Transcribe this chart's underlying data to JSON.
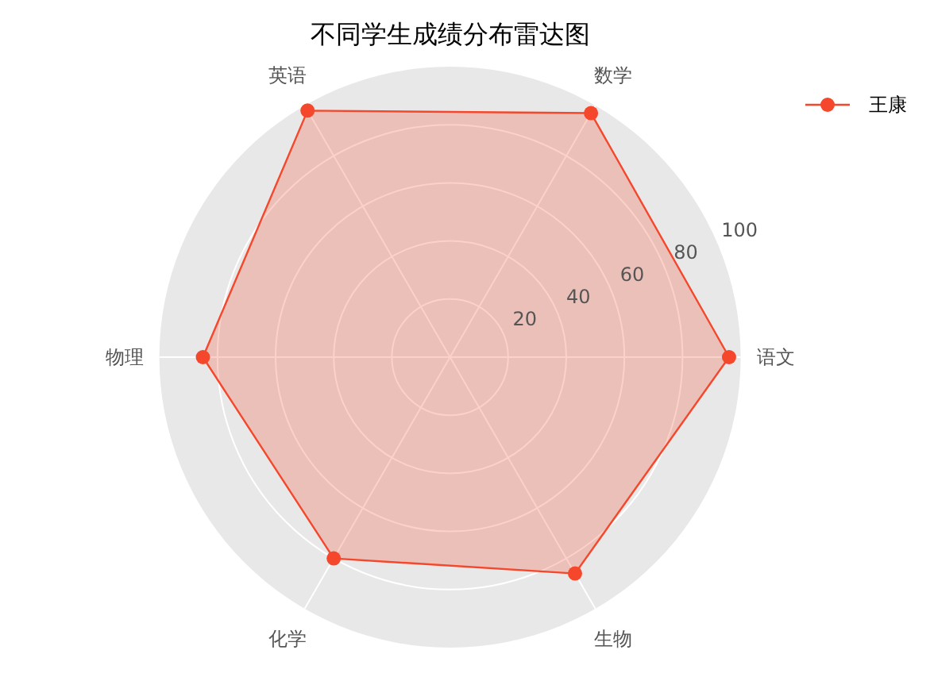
{
  "chart_data": {
    "type": "radar",
    "title": "不同学生成绩分布雷达图",
    "categories": [
      "数学",
      "语文",
      "生物",
      "化学",
      "物理",
      "英语"
    ],
    "series": [
      {
        "name": "王康",
        "color": "#f5472b",
        "values": [
          97,
          96,
          86,
          80,
          85,
          98
        ]
      }
    ],
    "ylim": [
      0,
      100
    ],
    "yticks": [
      20,
      40,
      60,
      80,
      100
    ],
    "grid": true,
    "legend": "top right",
    "marker": "circle"
  }
}
